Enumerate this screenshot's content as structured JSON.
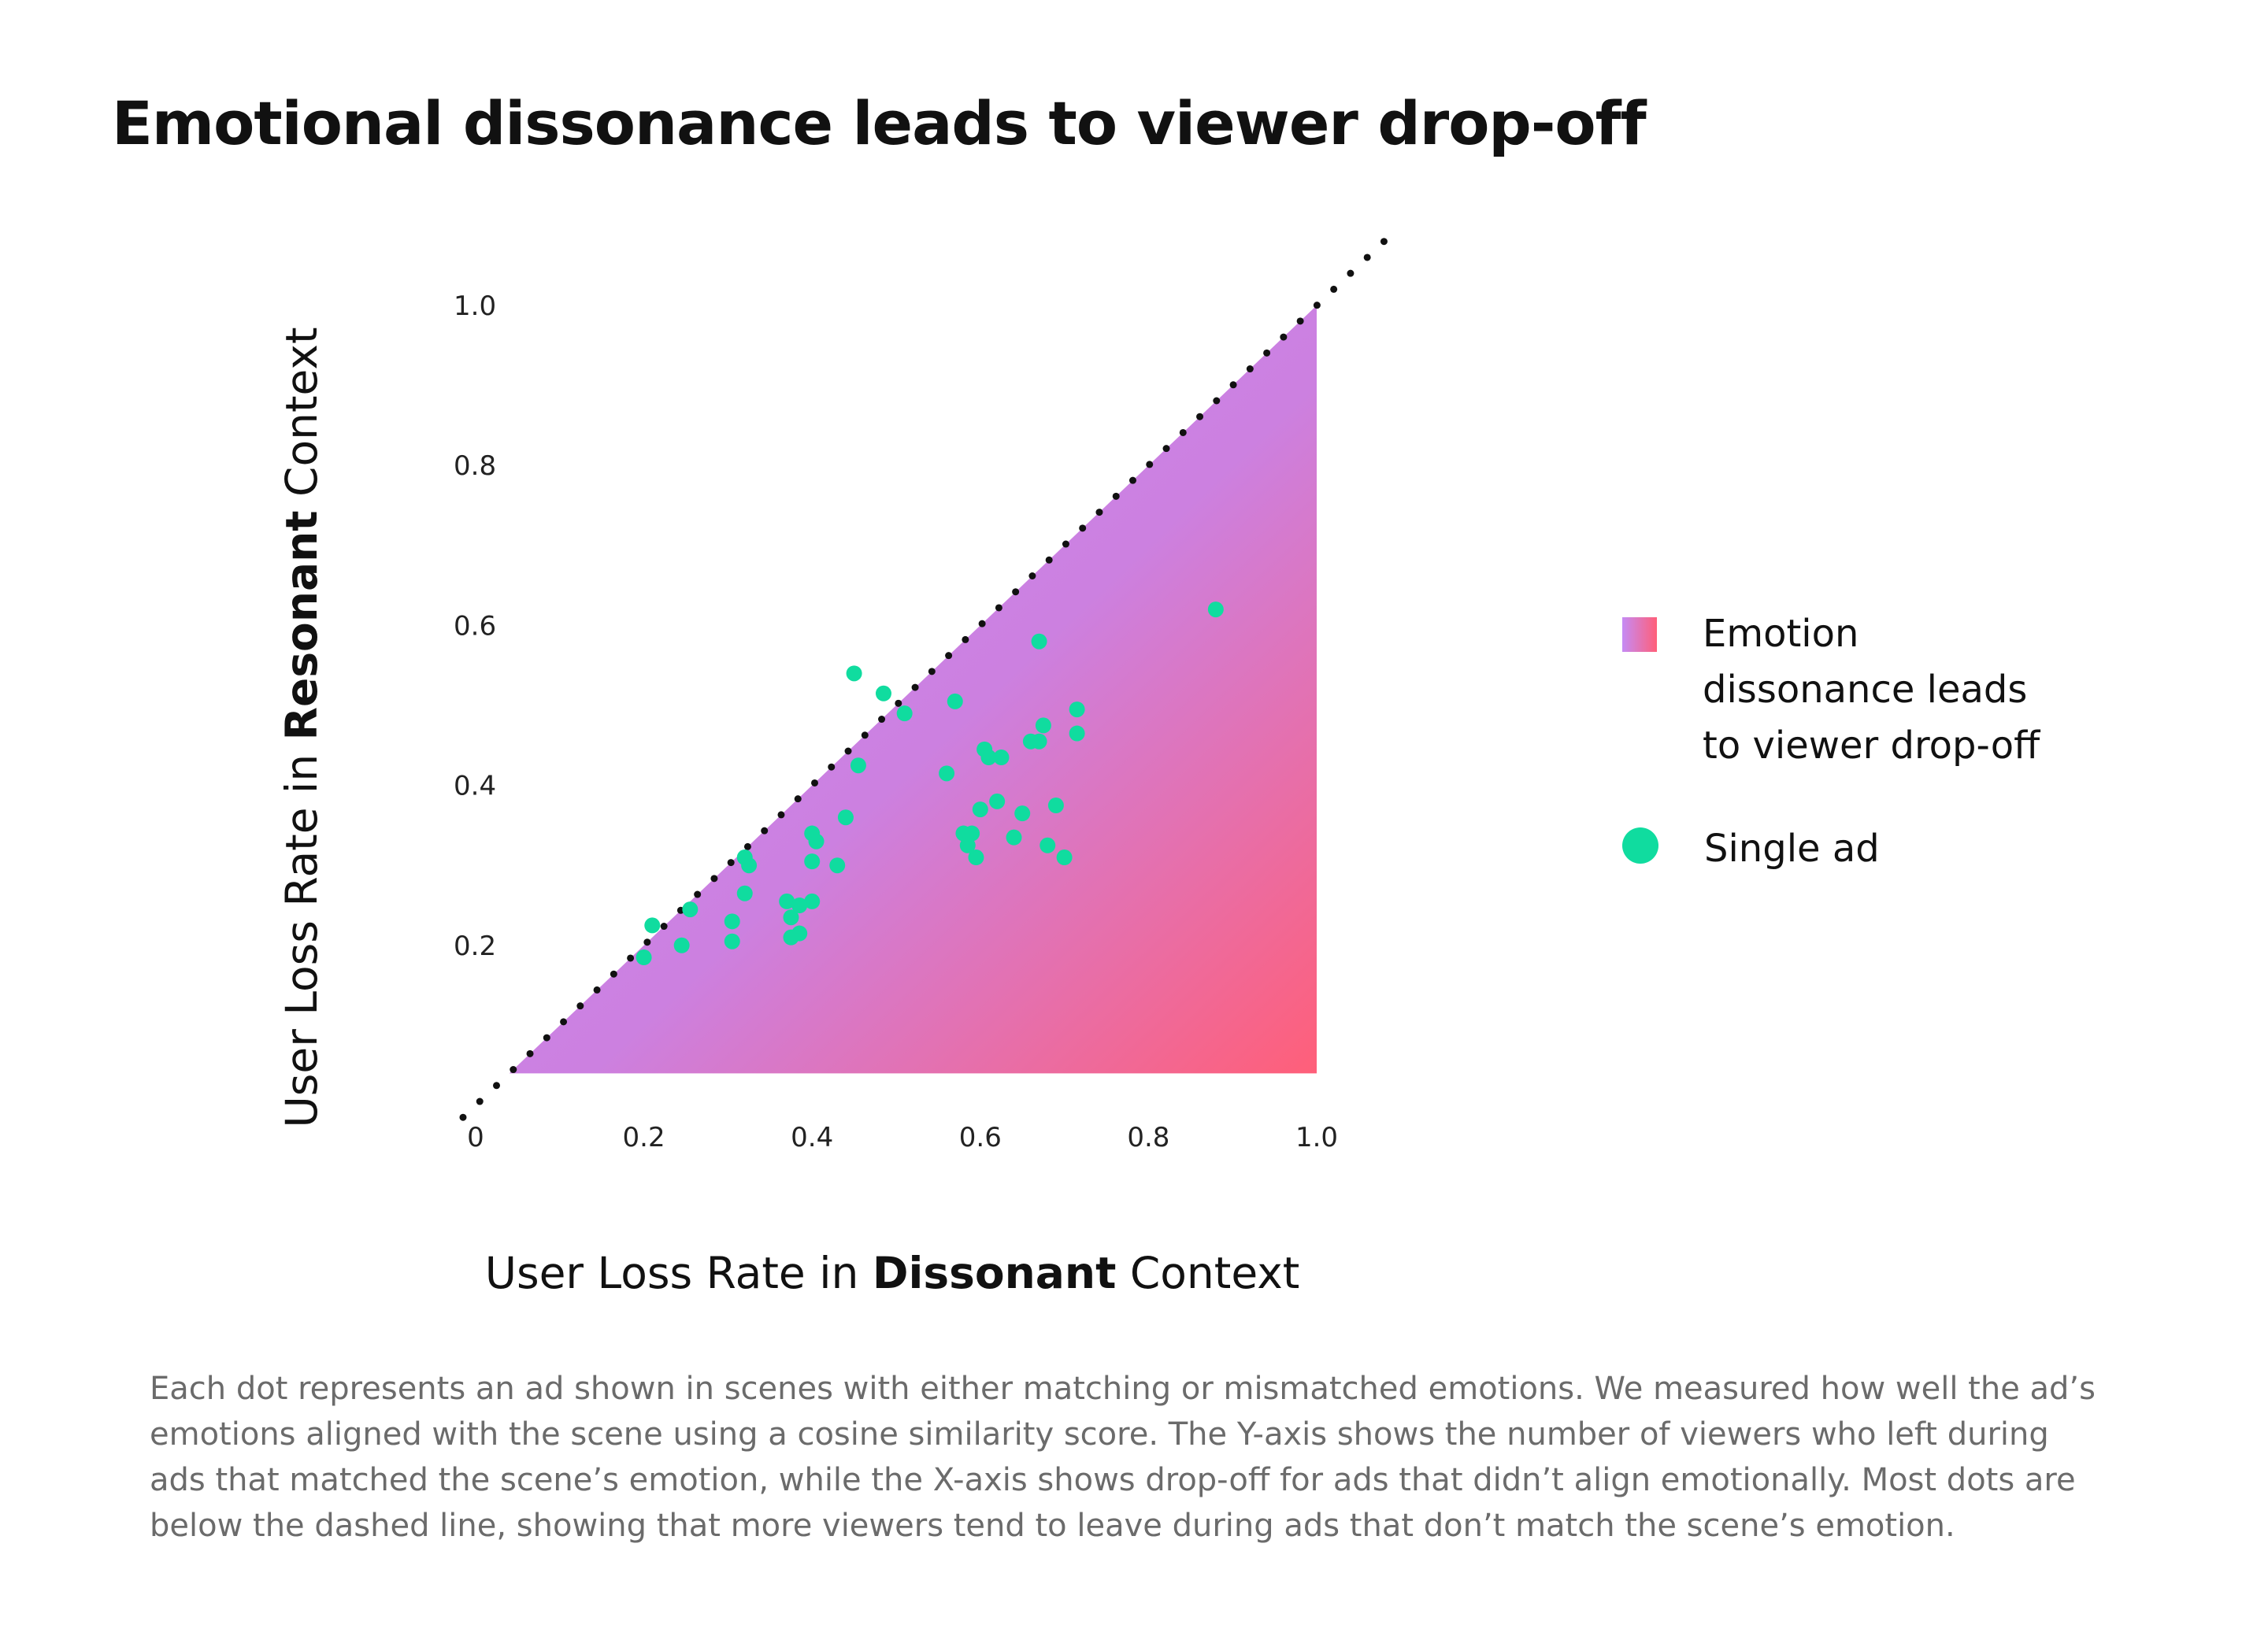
{
  "title": "Emotional dissonance leads to viewer drop-off",
  "colors": {
    "gradient_start": "#c58bf5",
    "gradient_mid": "#cc80e0",
    "gradient_end": "#ff5f79",
    "dot": "#10dc9f",
    "diagonal": "#111111"
  },
  "chart_data": {
    "type": "scatter",
    "title": "Emotional dissonance leads to viewer drop-off",
    "xlabel_parts": [
      "User Loss Rate in ",
      "Dissonant",
      " Context"
    ],
    "ylabel_parts": [
      "User Loss Rate in ",
      "Resonant",
      " Context"
    ],
    "xlim": [
      0,
      1.0
    ],
    "ylim": [
      0,
      1.0
    ],
    "x_ticks": [
      "0",
      "0.2",
      "0.4",
      "0.6",
      "0.8",
      "1.0"
    ],
    "y_ticks": [
      "0.2",
      "0.4",
      "0.6",
      "0.8",
      "1.0"
    ],
    "grid": false,
    "diagonal_line": "y = x (dotted)",
    "shaded_region": "below diagonal, gradient",
    "legend_position": "right",
    "legend": [
      {
        "kind": "gradient",
        "label": "Emotion dissonance leads to viewer drop-off"
      },
      {
        "kind": "dot",
        "label": "Single ad"
      }
    ],
    "series": [
      {
        "name": "Single ad",
        "points": [
          [
            0.88,
            0.62
          ],
          [
            0.67,
            0.58
          ],
          [
            0.45,
            0.54
          ],
          [
            0.485,
            0.515
          ],
          [
            0.51,
            0.49
          ],
          [
            0.57,
            0.505
          ],
          [
            0.715,
            0.495
          ],
          [
            0.675,
            0.475
          ],
          [
            0.715,
            0.465
          ],
          [
            0.66,
            0.455
          ],
          [
            0.67,
            0.455
          ],
          [
            0.605,
            0.445
          ],
          [
            0.61,
            0.435
          ],
          [
            0.625,
            0.435
          ],
          [
            0.455,
            0.425
          ],
          [
            0.56,
            0.415
          ],
          [
            0.62,
            0.38
          ],
          [
            0.69,
            0.375
          ],
          [
            0.6,
            0.37
          ],
          [
            0.65,
            0.365
          ],
          [
            0.44,
            0.36
          ],
          [
            0.58,
            0.34
          ],
          [
            0.59,
            0.34
          ],
          [
            0.64,
            0.335
          ],
          [
            0.68,
            0.325
          ],
          [
            0.585,
            0.325
          ],
          [
            0.595,
            0.31
          ],
          [
            0.7,
            0.31
          ],
          [
            0.4,
            0.34
          ],
          [
            0.405,
            0.33
          ],
          [
            0.32,
            0.31
          ],
          [
            0.325,
            0.3
          ],
          [
            0.4,
            0.305
          ],
          [
            0.43,
            0.3
          ],
          [
            0.32,
            0.265
          ],
          [
            0.37,
            0.255
          ],
          [
            0.4,
            0.255
          ],
          [
            0.385,
            0.25
          ],
          [
            0.255,
            0.245
          ],
          [
            0.375,
            0.235
          ],
          [
            0.305,
            0.23
          ],
          [
            0.385,
            0.215
          ],
          [
            0.21,
            0.225
          ],
          [
            0.305,
            0.205
          ],
          [
            0.375,
            0.21
          ],
          [
            0.245,
            0.2
          ],
          [
            0.2,
            0.185
          ]
        ]
      }
    ]
  },
  "caption": "Each dot represents an ad shown in scenes with either matching or mismatched emotions. We measured how well the ad’s emotions aligned with the scene using a cosine similarity score. The Y-axis shows the number of viewers who left during ads that matched the scene’s emotion, while the X-axis shows drop-off for ads that didn’t align emotionally. Most dots are below the dashed line, showing that more viewers tend to leave during ads that don’t match the scene’s emotion."
}
